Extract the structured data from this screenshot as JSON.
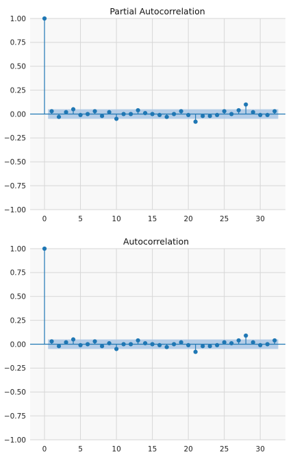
{
  "colors": {
    "stem": "#1f77b4",
    "band": "#a9c6e4",
    "plot_bg": "#f8f8f8",
    "grid": "#d6d6d6",
    "zero_line": "#1f77b4"
  },
  "chart_data": [
    {
      "type": "stem",
      "title": "Partial Autocorrelation",
      "xlabel": "",
      "ylabel": "",
      "xlim": [
        -2,
        33.5
      ],
      "ylim": [
        -1.0,
        1.0
      ],
      "x_ticks": [
        0,
        5,
        10,
        15,
        20,
        25,
        30
      ],
      "y_ticks": [
        1.0,
        0.75,
        0.5,
        0.25,
        0.0,
        -0.25,
        -0.5,
        -0.75,
        -1.0
      ],
      "x_tick_labels": [
        "0",
        "5",
        "10",
        "15",
        "20",
        "25",
        "30"
      ],
      "y_tick_labels": [
        "1.00",
        "0.75",
        "0.50",
        "0.25",
        "0.00",
        "−0.25",
        "−0.50",
        "−0.75",
        "−1.00"
      ],
      "grid": true,
      "confidence_band": 0.05,
      "lags": [
        0,
        1,
        2,
        3,
        4,
        5,
        6,
        7,
        8,
        9,
        10,
        11,
        12,
        13,
        14,
        15,
        16,
        17,
        18,
        19,
        20,
        21,
        22,
        23,
        24,
        25,
        26,
        27,
        28,
        29,
        30,
        31,
        32
      ],
      "values": [
        1.0,
        0.03,
        -0.03,
        0.02,
        0.05,
        -0.01,
        0.0,
        0.03,
        -0.02,
        0.02,
        -0.05,
        0.0,
        0.0,
        0.04,
        0.01,
        0.0,
        -0.01,
        -0.03,
        0.0,
        0.03,
        -0.01,
        -0.08,
        -0.02,
        -0.02,
        -0.01,
        0.03,
        0.0,
        0.04,
        0.1,
        0.02,
        -0.01,
        -0.01,
        0.03
      ]
    },
    {
      "type": "stem",
      "title": "Autocorrelation",
      "xlabel": "",
      "ylabel": "",
      "xlim": [
        -2,
        33.5
      ],
      "ylim": [
        -1.0,
        1.0
      ],
      "x_ticks": [
        0,
        5,
        10,
        15,
        20,
        25,
        30
      ],
      "y_ticks": [
        1.0,
        0.75,
        0.5,
        0.25,
        0.0,
        -0.25,
        -0.5,
        -0.75,
        -1.0
      ],
      "x_tick_labels": [
        "0",
        "5",
        "10",
        "15",
        "20",
        "25",
        "30"
      ],
      "y_tick_labels": [
        "1.00",
        "0.75",
        "0.50",
        "0.25",
        "0.00",
        "−0.25",
        "−0.50",
        "−0.75",
        "−1.00"
      ],
      "grid": true,
      "confidence_band": 0.05,
      "lags": [
        0,
        1,
        2,
        3,
        4,
        5,
        6,
        7,
        8,
        9,
        10,
        11,
        12,
        13,
        14,
        15,
        16,
        17,
        18,
        19,
        20,
        21,
        22,
        23,
        24,
        25,
        26,
        27,
        28,
        29,
        30,
        31,
        32
      ],
      "values": [
        1.0,
        0.03,
        -0.02,
        0.02,
        0.05,
        -0.01,
        0.0,
        0.03,
        -0.02,
        0.01,
        -0.05,
        0.0,
        0.0,
        0.04,
        0.01,
        0.0,
        -0.01,
        -0.03,
        0.0,
        0.02,
        -0.01,
        -0.08,
        -0.02,
        -0.02,
        -0.01,
        0.02,
        0.01,
        0.04,
        0.09,
        0.02,
        -0.01,
        0.0,
        0.04
      ]
    }
  ]
}
